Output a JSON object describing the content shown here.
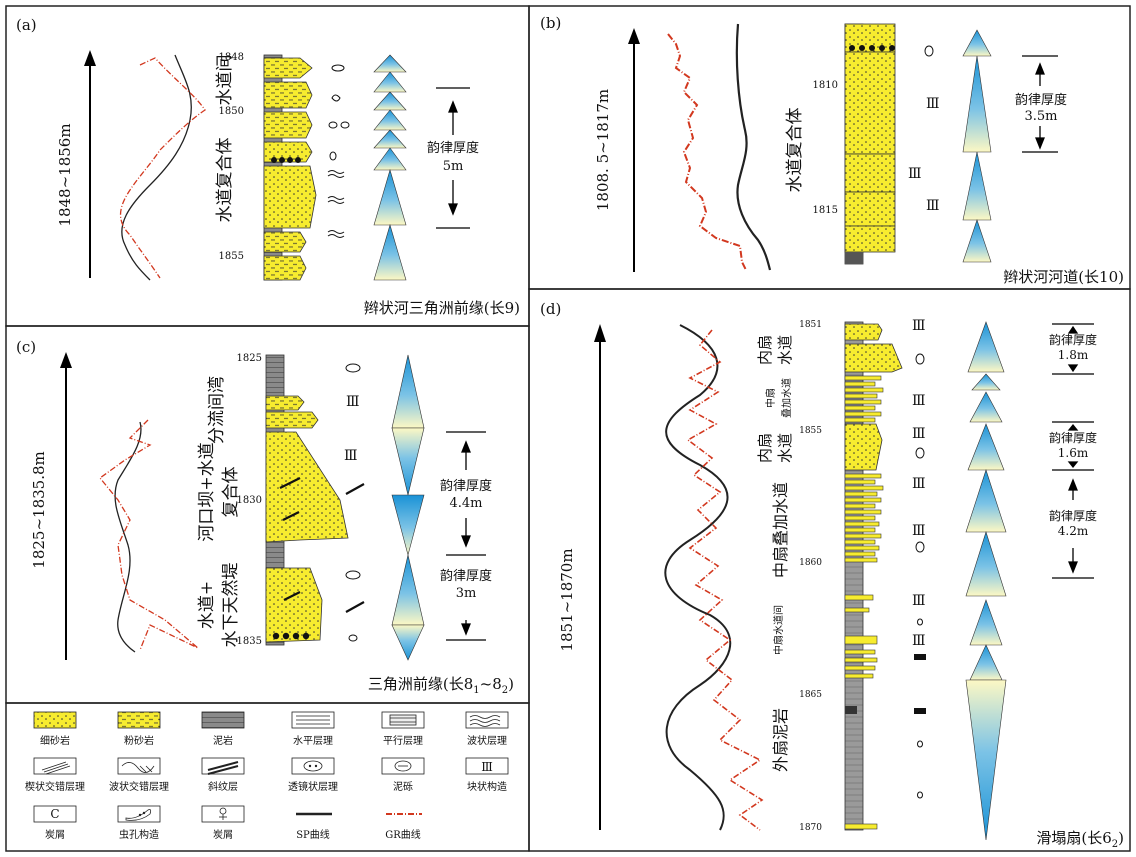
{
  "colors": {
    "sand": "#f7ec2f",
    "mud": "#8a8a8a",
    "blue": "#1a92d6",
    "pale": "#fdf8c4",
    "gr": "#d2381f",
    "sp": "#222222"
  },
  "panels": {
    "a": {
      "letter": "(a)",
      "interval": "1848~1856m",
      "depths": [
        "1848",
        "1850",
        "1855"
      ],
      "facies": [
        "水道间",
        "水道复合体"
      ],
      "thickness": [
        "韵律厚度",
        "5m"
      ],
      "title": "辫状河三角洲前缘(长9)"
    },
    "b": {
      "letter": "(b)",
      "interval": "1808. 5~1817m",
      "depths": [
        "1810",
        "1815"
      ],
      "facies": [
        "水道复合体"
      ],
      "thickness": [
        "韵律厚度",
        "3.5m"
      ],
      "title": "辫状河河道(长10)"
    },
    "c": {
      "letter": "(c)",
      "interval": "1825~1835.8m",
      "depths": [
        "1825",
        "1830",
        "1835"
      ],
      "facies": [
        "分流间湾",
        "河口坝+水道",
        "复合体",
        "水道+",
        "水下天然堤"
      ],
      "thickness1": [
        "韵律厚度",
        "4.4m"
      ],
      "thickness2": [
        "韵律厚度",
        "3m"
      ],
      "title_main": "三角洲前缘(长8",
      "title_sub1": "1",
      "title_mid": "~8",
      "title_sub2": "2",
      "title_end": ")"
    },
    "d": {
      "letter": "(d)",
      "interval": "1851~1870m",
      "depths": [
        "1851",
        "1855",
        "1860",
        "1865",
        "1870"
      ],
      "facies": [
        "内扇",
        "水道",
        "中扇",
        "叠加水道",
        "内扇",
        "水道",
        "中扇叠加水道",
        "中扇水道间",
        "外扇泥岩"
      ],
      "thickness1": [
        "韵律厚度",
        "1.8m"
      ],
      "thickness2": [
        "韵律厚度",
        "1.6m"
      ],
      "thickness3": [
        "韵律厚度",
        "4.2m"
      ],
      "title_main": "滑塌扇(长6",
      "title_sub": "2",
      "title_end": ")"
    }
  },
  "legend": [
    {
      "label": "细砂岩",
      "icon": "fine-sandstone"
    },
    {
      "label": "粉砂岩",
      "icon": "siltstone"
    },
    {
      "label": "泥岩",
      "icon": "mudstone"
    },
    {
      "label": "水平层理",
      "icon": "horizontal-bedding"
    },
    {
      "label": "平行层理",
      "icon": "parallel-bedding"
    },
    {
      "label": "波状层理",
      "icon": "wavy-bedding"
    },
    {
      "label": "楔状交错层理",
      "icon": "wedge-cross-bedding"
    },
    {
      "label": "波状交错层理",
      "icon": "wavy-cross-bedding"
    },
    {
      "label": "斜纹层",
      "icon": "oblique-lamination"
    },
    {
      "label": "透镜状层理",
      "icon": "lenticular-bedding"
    },
    {
      "label": "泥砾",
      "icon": "mud-gravel"
    },
    {
      "label": "块状构造",
      "icon": "massive-structure"
    },
    {
      "label": "炭屑",
      "icon": "carbon-debris"
    },
    {
      "label": "虫孔构造",
      "icon": "burrow-structure"
    },
    {
      "label": "炭屑",
      "icon": "plant-debris"
    },
    {
      "label": "SP曲线",
      "icon": "sp-curve"
    },
    {
      "label": "GR曲线",
      "icon": "gr-curve"
    }
  ],
  "legend_glyphs": {
    "massive": "Ⅲ",
    "carbon": "C"
  }
}
